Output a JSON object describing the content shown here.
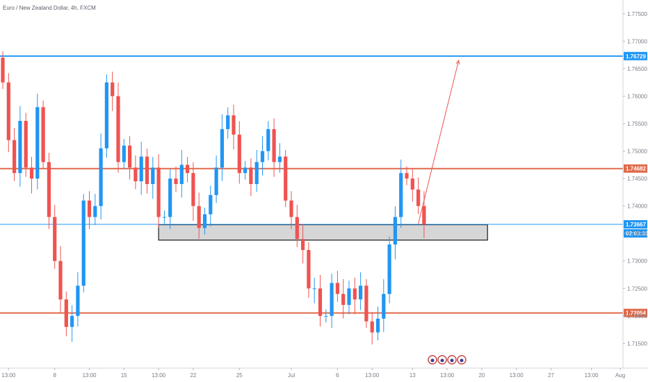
{
  "title": "Euro / New Zealand Dollar, 4h, FXCM",
  "colors": {
    "up": "#2196f3",
    "down": "#ef5350",
    "hline_red": "#e0694a",
    "hline_blue": "#2196f3",
    "zone_fill": "#d6d6d6",
    "zone_border": "#1a1a1a",
    "axis_text": "#787b86",
    "grid": "#e8eaee"
  },
  "icons": [
    "calendar-event-icon",
    "calendar-event-icon",
    "calendar-event-icon",
    "calendar-event-icon"
  ],
  "chart_data": {
    "type": "candlestick",
    "ylim": [
      1.7105,
      1.7775
    ],
    "yticks": [
      "1.77500",
      "1.77000",
      "1.76500",
      "1.76000",
      "1.75500",
      "1.75000",
      "1.74500",
      "1.74000",
      "1.73500",
      "1.73000",
      "1.72500",
      "1.72000",
      "1.71500"
    ],
    "xticks": [
      {
        "label": "13:00",
        "bar": 1
      },
      {
        "label": "8",
        "bar": 9
      },
      {
        "label": "13:00",
        "bar": 15
      },
      {
        "label": "15",
        "bar": 21
      },
      {
        "label": "13:00",
        "bar": 27
      },
      {
        "label": "22",
        "bar": 33
      },
      {
        "label": "25",
        "bar": 41
      },
      {
        "label": "Jul",
        "bar": 50
      },
      {
        "label": "6",
        "bar": 58
      },
      {
        "label": "13:00",
        "bar": 64
      },
      {
        "label": "13",
        "bar": 71
      },
      {
        "label": "13:00",
        "bar": 77
      },
      {
        "label": "20",
        "bar": 83
      },
      {
        "label": "13:00",
        "bar": 89
      },
      {
        "label": "27",
        "bar": 95
      },
      {
        "label": "13:00",
        "bar": 102
      },
      {
        "label": "Aug",
        "bar": 107
      }
    ],
    "closes": [
      1.7625,
      1.752,
      1.746,
      1.7555,
      1.747,
      1.745,
      1.758,
      1.748,
      1.738,
      1.73,
      1.723,
      1.718,
      1.72,
      1.7255,
      1.741,
      1.738,
      1.74,
      1.7505,
      1.7625,
      1.76,
      1.748,
      1.751,
      1.747,
      1.7445,
      1.749,
      1.744,
      1.747,
      1.738,
      1.738,
      1.745,
      1.744,
      1.7475,
      1.746,
      1.74,
      1.736,
      1.7385,
      1.742,
      1.747,
      1.754,
      1.7565,
      1.753,
      1.746,
      1.747,
      1.744,
      1.748,
      1.75,
      1.754,
      1.748,
      1.749,
      1.741,
      1.738,
      1.734,
      1.732,
      1.725,
      1.725,
      1.72,
      1.72,
      1.726,
      1.724,
      1.722,
      1.725,
      1.723,
      1.7255,
      1.719,
      1.717,
      1.7195,
      1.724,
      1.733,
      1.738,
      1.746,
      1.745,
      1.743,
      1.74,
      1.7366
    ],
    "hlines": [
      {
        "price": 1.76729,
        "label": "1.76729",
        "color": "hline_blue",
        "width": 2
      },
      {
        "price": 1.74682,
        "label": "1.74682",
        "color": "hline_red",
        "width": 2
      },
      {
        "price": 1.73667,
        "label": "1.73667",
        "color": "hline_blue",
        "width": 1,
        "sublabel": "02:03:32"
      },
      {
        "price": 1.72054,
        "label": "1.72054",
        "color": "hline_red",
        "width": 2
      }
    ],
    "zone": {
      "bar_start": 27,
      "bar_end": 84,
      "price_top": 1.7366,
      "price_bottom": 1.7338
    },
    "projection": {
      "from_bar": 72,
      "from_price": 1.7368,
      "to_bar": 79,
      "to_price": 1.7665
    }
  }
}
